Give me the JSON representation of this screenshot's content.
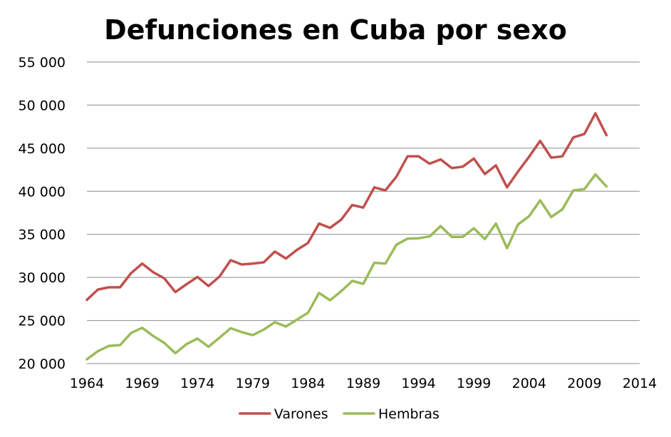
{
  "chart_data": {
    "type": "line",
    "title": "Defunciones en Cuba por sexo",
    "xlabel": "",
    "ylabel": "",
    "xlim": [
      1964,
      2014
    ],
    "ylim": [
      20000,
      55000
    ],
    "x_ticks": [
      1964,
      1969,
      1974,
      1979,
      1984,
      1989,
      1994,
      1999,
      2004,
      2009,
      2014
    ],
    "x_tick_labels": [
      "1964",
      "1969",
      "1974",
      "1979",
      "1984",
      "1989",
      "1994",
      "1999",
      "2004",
      "2009",
      "2014"
    ],
    "y_ticks": [
      20000,
      25000,
      30000,
      35000,
      40000,
      45000,
      50000,
      55000
    ],
    "y_tick_labels": [
      "20 000",
      "25 000",
      "30 000",
      "35 000",
      "40 000",
      "45 000",
      "50 000",
      "55 000"
    ],
    "grid": "horizontal",
    "legend_position": "bottom",
    "x": [
      1964,
      1965,
      1966,
      1967,
      1968,
      1969,
      1970,
      1971,
      1972,
      1973,
      1974,
      1975,
      1976,
      1977,
      1978,
      1979,
      1980,
      1981,
      1982,
      1983,
      1984,
      1985,
      1986,
      1987,
      1988,
      1989,
      1990,
      1991,
      1992,
      1993,
      1994,
      1995,
      1996,
      1997,
      1998,
      1999,
      2000,
      2001,
      2002,
      2003,
      2004,
      2005,
      2006,
      2007,
      2008,
      2009,
      2010,
      2011
    ],
    "series": [
      {
        "name": "Varones",
        "color": "#c0504d",
        "values": [
          27400,
          28600,
          28850,
          28850,
          30500,
          31600,
          30600,
          29900,
          28300,
          29200,
          30050,
          29000,
          30100,
          32000,
          31500,
          31600,
          31750,
          33000,
          32200,
          33200,
          34000,
          36250,
          35750,
          36700,
          38400,
          38100,
          40450,
          40100,
          41700,
          44050,
          44050,
          43200,
          43700,
          42700,
          42850,
          43800,
          42000,
          43000,
          40450,
          42300,
          44000,
          45850,
          43900,
          44050,
          46250,
          46650,
          49050,
          46500
        ]
      },
      {
        "name": "Hembras",
        "color": "#9bbb59",
        "values": [
          20500,
          21450,
          22050,
          22150,
          23550,
          24150,
          23200,
          22400,
          21200,
          22250,
          22900,
          21950,
          23000,
          24100,
          23650,
          23300,
          23950,
          24800,
          24300,
          25100,
          25900,
          28200,
          27350,
          28400,
          29600,
          29250,
          31700,
          31600,
          33800,
          34500,
          34550,
          34750,
          35950,
          34700,
          34700,
          35700,
          34450,
          36250,
          33400,
          36150,
          37100,
          38950,
          37000,
          37900,
          40100,
          40250,
          41950,
          40550
        ]
      }
    ]
  }
}
